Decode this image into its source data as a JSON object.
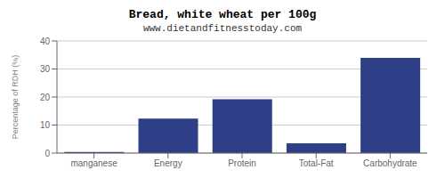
{
  "chart_data": {
    "type": "bar",
    "title": "Bread, white wheat per 100g",
    "subtitle": "www.dietandfitnesstoday.com",
    "categories": [
      "manganese",
      "Energy",
      "Protein",
      "Total-Fat",
      "Carbohydrate"
    ],
    "values": [
      0.4,
      12.3,
      19.2,
      3.5,
      34.0
    ],
    "color": "#2E3F87",
    "ylabel": "Percentage of RDH (%)",
    "ylim": [
      0,
      40
    ],
    "yticks": [
      0,
      10,
      20,
      30,
      40
    ],
    "grid": true
  }
}
